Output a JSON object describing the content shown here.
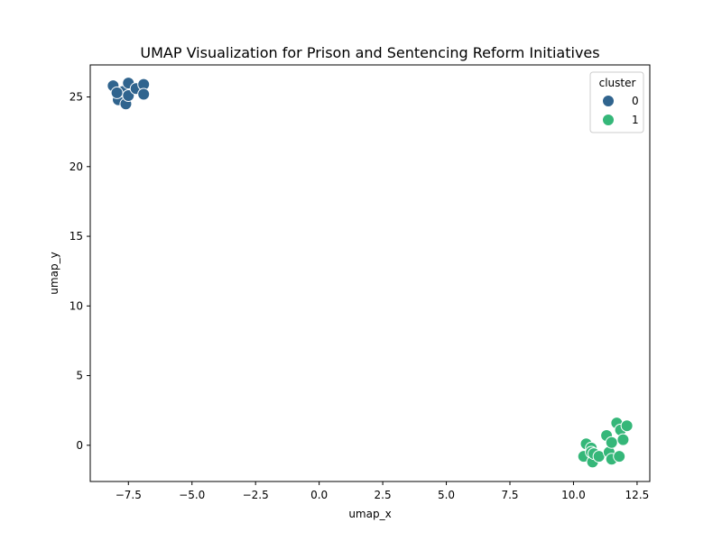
{
  "chart_data": {
    "type": "scatter",
    "title": "UMAP Visualization for Prison and Sentencing Reform Initiatives",
    "xlabel": "umap_x",
    "ylabel": "umap_y",
    "xlim": [
      -9.0,
      13.0
    ],
    "ylim": [
      -2.6,
      27.3
    ],
    "xticks": [
      -7.5,
      -5.0,
      -2.5,
      0.0,
      2.5,
      5.0,
      7.5,
      10.0,
      12.5
    ],
    "xtick_labels": [
      "−7.5",
      "−5.0",
      "−2.5",
      "0.0",
      "2.5",
      "5.0",
      "7.5",
      "10.0",
      "12.5"
    ],
    "yticks": [
      0,
      5,
      10,
      15,
      20,
      25
    ],
    "ytick_labels": [
      "0",
      "5",
      "10",
      "15",
      "20",
      "25"
    ],
    "grid": false,
    "legend": {
      "title": "cluster",
      "placement": "top-right",
      "entries": [
        {
          "label": "0",
          "color": "#30648e"
        },
        {
          "label": "1",
          "color": "#35b779"
        }
      ]
    },
    "series": [
      {
        "name": "0",
        "color": "#30648e",
        "points": [
          [
            -8.1,
            25.8
          ],
          [
            -7.9,
            24.8
          ],
          [
            -7.7,
            25.4
          ],
          [
            -7.6,
            24.5
          ],
          [
            -7.5,
            26.0
          ],
          [
            -7.5,
            25.1
          ],
          [
            -7.2,
            25.6
          ],
          [
            -6.9,
            25.9
          ],
          [
            -6.9,
            25.2
          ],
          [
            -7.95,
            25.3
          ]
        ]
      },
      {
        "name": "1",
        "color": "#35b779",
        "points": [
          [
            10.4,
            -0.8
          ],
          [
            10.5,
            0.1
          ],
          [
            10.7,
            -0.2
          ],
          [
            10.7,
            -0.5
          ],
          [
            10.75,
            -1.2
          ],
          [
            10.8,
            -0.6
          ],
          [
            11.0,
            -0.8
          ],
          [
            11.3,
            0.7
          ],
          [
            11.4,
            -0.5
          ],
          [
            11.5,
            0.2
          ],
          [
            11.5,
            -1.0
          ],
          [
            11.7,
            1.6
          ],
          [
            11.8,
            -0.8
          ],
          [
            11.85,
            1.1
          ],
          [
            11.95,
            0.4
          ],
          [
            12.1,
            1.4
          ]
        ]
      }
    ]
  }
}
